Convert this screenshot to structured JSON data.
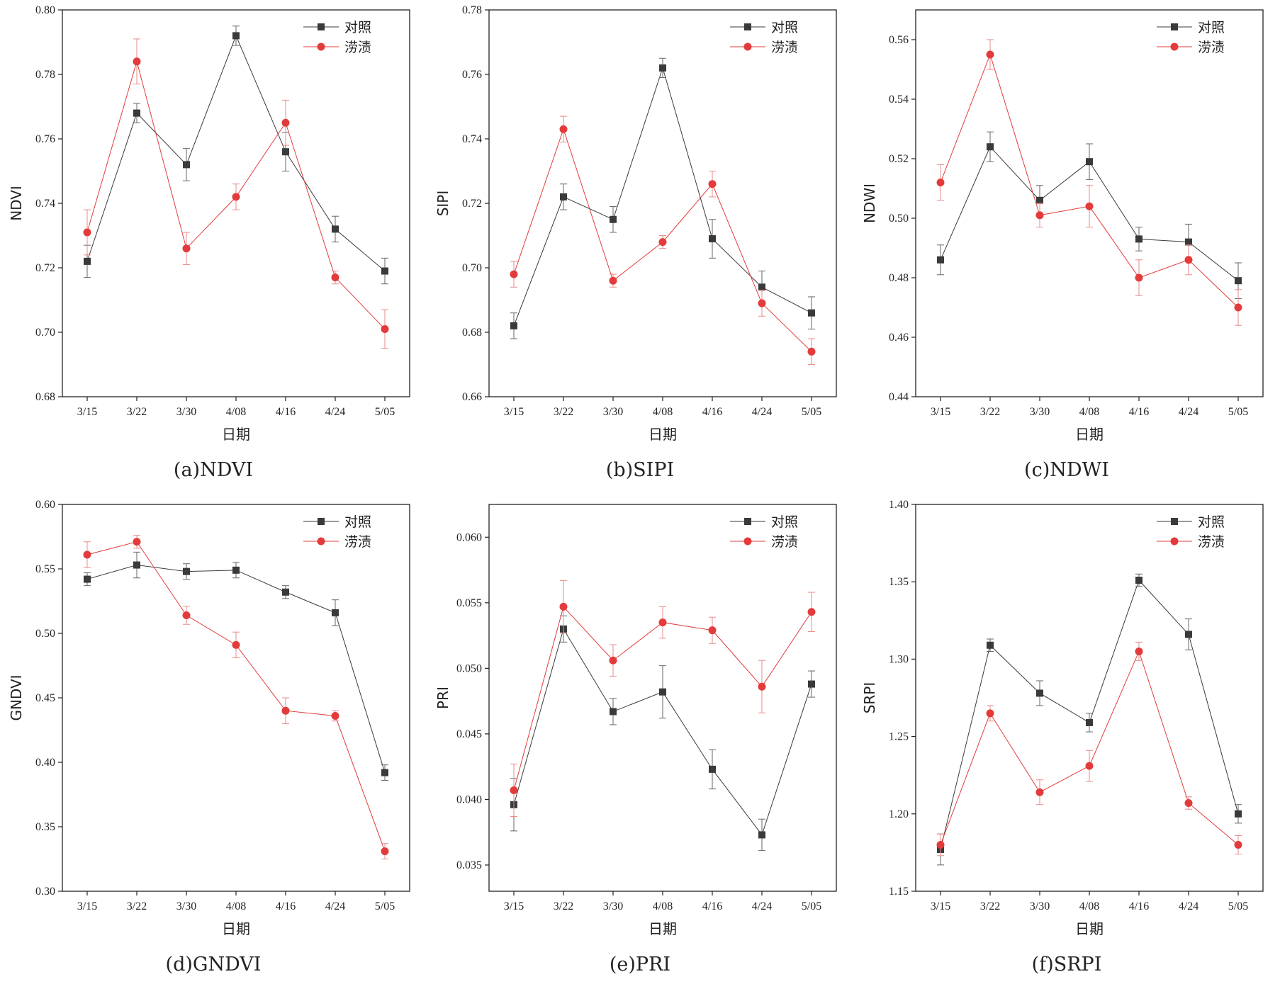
{
  "chart_data": [
    {
      "type": "line",
      "caption": "(a)NDVI",
      "xlabel": "日期",
      "ylabel": "NDVI",
      "categories": [
        "3/15",
        "3/22",
        "3/30",
        "4/08",
        "4/16",
        "4/24",
        "5/05"
      ],
      "ylim": [
        0.68,
        0.8
      ],
      "yticks": [
        "0.68",
        "0.70",
        "0.72",
        "0.74",
        "0.76",
        "0.78",
        "0.80"
      ],
      "legend_position": "top-right",
      "series": [
        {
          "name": "对照",
          "color": "#3a3a3a",
          "marker": "square",
          "values": [
            0.722,
            0.768,
            0.752,
            0.792,
            0.756,
            0.732,
            0.719
          ],
          "errors": [
            0.005,
            0.003,
            0.005,
            0.003,
            0.006,
            0.004,
            0.004
          ]
        },
        {
          "name": "涝渍",
          "color": "#e33b3b",
          "marker": "circle",
          "values": [
            0.731,
            0.784,
            0.726,
            0.742,
            0.765,
            0.717,
            0.701
          ],
          "errors": [
            0.007,
            0.007,
            0.005,
            0.004,
            0.007,
            0.002,
            0.006
          ]
        }
      ]
    },
    {
      "type": "line",
      "caption": "(b)SIPI",
      "xlabel": "日期",
      "ylabel": "SIPI",
      "categories": [
        "3/15",
        "3/22",
        "3/30",
        "4/08",
        "4/16",
        "4/24",
        "5/05"
      ],
      "ylim": [
        0.66,
        0.78
      ],
      "yticks": [
        "0.66",
        "0.68",
        "0.70",
        "0.72",
        "0.74",
        "0.76",
        "0.78"
      ],
      "legend_position": "top-right",
      "series": [
        {
          "name": "对照",
          "color": "#3a3a3a",
          "marker": "square",
          "values": [
            0.682,
            0.722,
            0.715,
            0.762,
            0.709,
            0.694,
            0.686
          ],
          "errors": [
            0.004,
            0.004,
            0.004,
            0.003,
            0.006,
            0.005,
            0.005
          ]
        },
        {
          "name": "涝渍",
          "color": "#e33b3b",
          "marker": "circle",
          "values": [
            0.698,
            0.743,
            0.696,
            0.708,
            0.726,
            0.689,
            0.674
          ],
          "errors": [
            0.004,
            0.004,
            0.002,
            0.002,
            0.004,
            0.004,
            0.004
          ]
        }
      ]
    },
    {
      "type": "line",
      "caption": "(c)NDWI",
      "xlabel": "日期",
      "ylabel": "NDWI",
      "categories": [
        "3/15",
        "3/22",
        "3/30",
        "4/08",
        "4/16",
        "4/24",
        "5/05"
      ],
      "ylim": [
        0.44,
        0.57
      ],
      "yticks": [
        "0.44",
        "0.46",
        "0.48",
        "0.50",
        "0.52",
        "0.54",
        "0.56"
      ],
      "legend_position": "top-right",
      "series": [
        {
          "name": "对照",
          "color": "#3a3a3a",
          "marker": "square",
          "values": [
            0.486,
            0.524,
            0.506,
            0.519,
            0.493,
            0.492,
            0.479
          ],
          "errors": [
            0.005,
            0.005,
            0.005,
            0.006,
            0.004,
            0.006,
            0.006
          ]
        },
        {
          "name": "涝渍",
          "color": "#e33b3b",
          "marker": "circle",
          "values": [
            0.512,
            0.555,
            0.501,
            0.504,
            0.48,
            0.486,
            0.47
          ],
          "errors": [
            0.006,
            0.005,
            0.004,
            0.007,
            0.006,
            0.005,
            0.006
          ]
        }
      ]
    },
    {
      "type": "line",
      "caption": "(d)GNDVI",
      "xlabel": "日期",
      "ylabel": "GNDVI",
      "categories": [
        "3/15",
        "3/22",
        "3/30",
        "4/08",
        "4/16",
        "4/24",
        "5/05"
      ],
      "ylim": [
        0.3,
        0.6
      ],
      "yticks": [
        "0.30",
        "0.35",
        "0.40",
        "0.45",
        "0.50",
        "0.55",
        "0.60"
      ],
      "legend_position": "top-right",
      "series": [
        {
          "name": "对照",
          "color": "#3a3a3a",
          "marker": "square",
          "values": [
            0.542,
            0.553,
            0.548,
            0.549,
            0.532,
            0.516,
            0.392
          ],
          "errors": [
            0.005,
            0.01,
            0.006,
            0.006,
            0.005,
            0.01,
            0.006
          ]
        },
        {
          "name": "涝渍",
          "color": "#e33b3b",
          "marker": "circle",
          "values": [
            0.561,
            0.571,
            0.514,
            0.491,
            0.44,
            0.436,
            0.331
          ],
          "errors": [
            0.01,
            0.005,
            0.007,
            0.01,
            0.01,
            0.004,
            0.006
          ]
        }
      ]
    },
    {
      "type": "line",
      "caption": "(e)PRI",
      "xlabel": "日期",
      "ylabel": "PRI",
      "categories": [
        "3/15",
        "3/22",
        "3/30",
        "4/08",
        "4/16",
        "4/24",
        "5/05"
      ],
      "ylim": [
        0.033,
        0.0625
      ],
      "yticks": [
        "0.035",
        "0.040",
        "0.045",
        "0.050",
        "0.055",
        "0.060"
      ],
      "legend_position": "top-right",
      "series": [
        {
          "name": "对照",
          "color": "#3a3a3a",
          "marker": "square",
          "values": [
            0.0396,
            0.053,
            0.0467,
            0.0482,
            0.0423,
            0.0373,
            0.0488
          ],
          "errors": [
            0.002,
            0.001,
            0.001,
            0.002,
            0.0015,
            0.0012,
            0.001
          ]
        },
        {
          "name": "涝渍",
          "color": "#e33b3b",
          "marker": "circle",
          "values": [
            0.0407,
            0.0547,
            0.0506,
            0.0535,
            0.0529,
            0.0486,
            0.0543
          ],
          "errors": [
            0.002,
            0.002,
            0.0012,
            0.0012,
            0.001,
            0.002,
            0.0015
          ]
        }
      ]
    },
    {
      "type": "line",
      "caption": "(f)SRPI",
      "xlabel": "日期",
      "ylabel": "SRPI",
      "categories": [
        "3/15",
        "3/22",
        "3/30",
        "4/08",
        "4/16",
        "4/24",
        "5/05"
      ],
      "ylim": [
        1.15,
        1.4
      ],
      "yticks": [
        "1.15",
        "1.20",
        "1.25",
        "1.30",
        "1.35",
        "1.40"
      ],
      "legend_position": "top-right",
      "series": [
        {
          "name": "对照",
          "color": "#3a3a3a",
          "marker": "square",
          "values": [
            1.177,
            1.309,
            1.278,
            1.259,
            1.351,
            1.316,
            1.2
          ],
          "errors": [
            0.01,
            0.004,
            0.008,
            0.006,
            0.004,
            0.01,
            0.006
          ]
        },
        {
          "name": "涝渍",
          "color": "#e33b3b",
          "marker": "circle",
          "values": [
            1.18,
            1.265,
            1.214,
            1.231,
            1.305,
            1.207,
            1.18
          ],
          "errors": [
            0.007,
            0.005,
            0.008,
            0.01,
            0.006,
            0.004,
            0.006
          ]
        }
      ]
    }
  ]
}
